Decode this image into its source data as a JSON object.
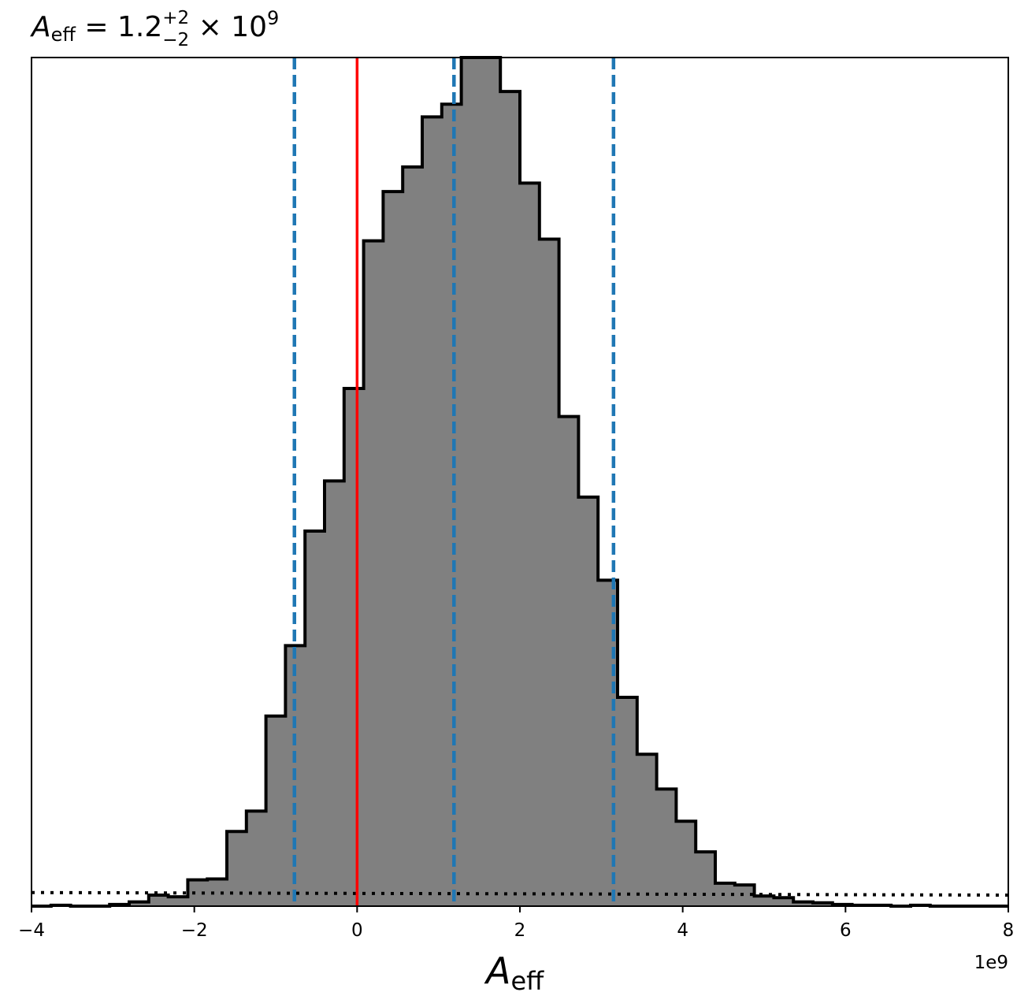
{
  "chart_data": {
    "type": "bar",
    "title": {
      "symbol": "A",
      "symbol_sub": "eff",
      "equals": " = 1.2",
      "sup": "+2",
      "sub": "−2",
      "tail": " × 10",
      "exp": "9"
    },
    "xlabel": {
      "symbol": "A",
      "sub": "eff"
    },
    "x_offset_label": "1e9",
    "xlim": [
      -4,
      8
    ],
    "ylim": [
      0,
      1.0
    ],
    "x_ticks": [
      -4,
      -2,
      0,
      2,
      4,
      6,
      8
    ],
    "x_tick_labels": [
      "−4",
      "−2",
      "0",
      "2",
      "4",
      "6",
      "8"
    ],
    "y_ticks_shown": false,
    "grid": false,
    "bin_edges": [
      -4.0,
      -3.76,
      -3.52,
      -3.28,
      -3.04,
      -2.8,
      -2.56,
      -2.32,
      -2.08,
      -1.84,
      -1.6,
      -1.36,
      -1.12,
      -0.88,
      -0.64,
      -0.4,
      -0.16,
      0.08,
      0.32,
      0.56,
      0.8,
      1.04,
      1.28,
      1.52,
      1.76,
      2.0,
      2.24,
      2.48,
      2.72,
      2.96,
      3.2,
      3.44,
      3.68,
      3.92,
      4.16,
      4.4,
      4.64,
      4.88,
      5.12,
      5.36,
      5.6,
      5.84,
      6.08,
      6.32,
      6.56,
      6.8,
      7.04,
      7.28,
      7.52,
      7.76,
      8.0
    ],
    "values": [
      0.0,
      0.001,
      0.0,
      0.0,
      0.002,
      0.005,
      0.013,
      0.011,
      0.031,
      0.032,
      0.088,
      0.112,
      0.224,
      0.307,
      0.442,
      0.501,
      0.61,
      0.784,
      0.842,
      0.871,
      0.93,
      0.945,
      1.0,
      1.0,
      0.96,
      0.852,
      0.786,
      0.577,
      0.482,
      0.384,
      0.246,
      0.179,
      0.138,
      0.1,
      0.064,
      0.027,
      0.025,
      0.012,
      0.01,
      0.005,
      0.004,
      0.002,
      0.001,
      0.001,
      0.0,
      0.001,
      0.0,
      0.0,
      0.0,
      0.0
    ],
    "hist_style": {
      "fill": "#808080",
      "edge": "#000000"
    },
    "vlines": [
      {
        "x": 0.0,
        "color": "#ff0000",
        "style": "solid"
      },
      {
        "x": -0.77,
        "color": "#1f77b4",
        "style": "dashed"
      },
      {
        "x": 1.19,
        "color": "#1f77b4",
        "style": "dashed"
      },
      {
        "x": 3.15,
        "color": "#1f77b4",
        "style": "dashed"
      }
    ],
    "prior_line": {
      "x": [
        -4,
        8
      ],
      "y": [
        0.016,
        0.013
      ],
      "color": "#000000",
      "style": "dotted"
    }
  }
}
